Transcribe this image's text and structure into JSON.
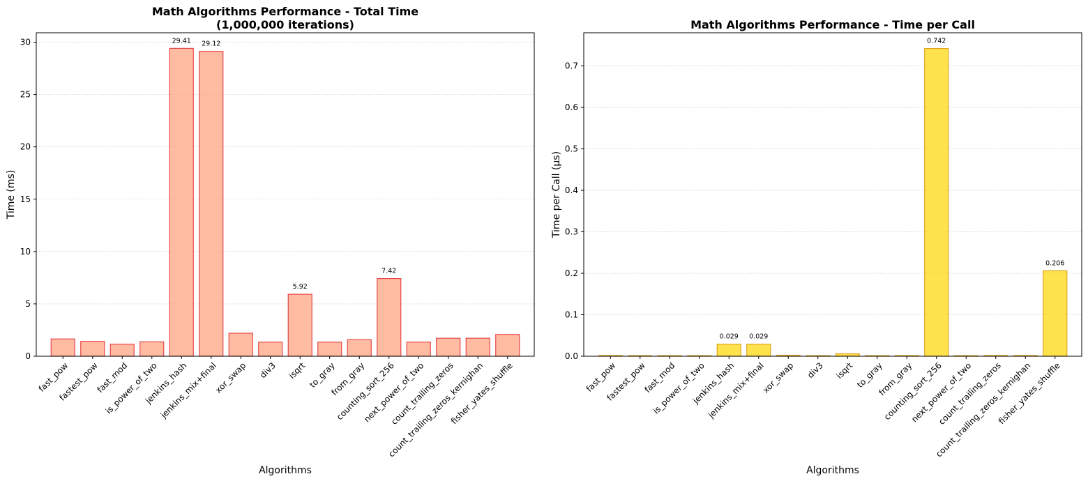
{
  "chart_data": [
    {
      "type": "bar",
      "title_lines": [
        "Math Algorithms Performance - Total Time",
        "(1,000,000 iterations)"
      ],
      "xlabel": "Algorithms",
      "ylabel": "Time (ms)",
      "ylim": [
        0,
        30.9
      ],
      "yticks": [
        0,
        5,
        10,
        15,
        20,
        25,
        30
      ],
      "ytick_labels": [
        "0",
        "5",
        "10",
        "15",
        "20",
        "25",
        "30"
      ],
      "bar_color": "#FFA07A",
      "edge_color": "#E8474A",
      "categories": [
        "fast_pow",
        "fastest_pow",
        "fast_mod",
        "is_power_of_two",
        "jenkins_hash",
        "jenkins_mix+final",
        "xor_swap",
        "div3",
        "isqrt",
        "to_gray",
        "from_gray",
        "counting_sort_256",
        "next_power_of_two",
        "count_trailing_zeros",
        "count_trailing_zeros_kernighan",
        "fisher_yates_shuffle"
      ],
      "values": [
        1.65,
        1.42,
        1.15,
        1.38,
        29.41,
        29.12,
        2.2,
        1.35,
        5.92,
        1.35,
        1.58,
        7.42,
        1.35,
        1.72,
        1.72,
        2.08
      ],
      "data_labels": [
        {
          "index": 4,
          "text": "29.41"
        },
        {
          "index": 5,
          "text": "29.12"
        },
        {
          "index": 8,
          "text": "5.92"
        },
        {
          "index": 11,
          "text": "7.42"
        }
      ]
    },
    {
      "type": "bar",
      "title_lines": [
        "Math Algorithms Performance - Time per Call"
      ],
      "xlabel": "Algorithms",
      "ylabel": "Time per Call (μs)",
      "ylim": [
        0,
        0.78
      ],
      "yticks": [
        0,
        0.1,
        0.2,
        0.3,
        0.4,
        0.5,
        0.6,
        0.7
      ],
      "ytick_labels": [
        "0.0",
        "0.1",
        "0.2",
        "0.3",
        "0.4",
        "0.5",
        "0.6",
        "0.7"
      ],
      "bar_color": "#FFD700",
      "edge_color": "#E0A21E",
      "categories": [
        "fast_pow",
        "fastest_pow",
        "fast_mod",
        "is_power_of_two",
        "jenkins_hash",
        "jenkins_mix+final",
        "xor_swap",
        "div3",
        "isqrt",
        "to_gray",
        "from_gray",
        "counting_sort_256",
        "next_power_of_two",
        "count_trailing_zeros",
        "count_trailing_zeros_kernighan",
        "fisher_yates_shuffle"
      ],
      "values": [
        0.0017,
        0.0014,
        0.0012,
        0.0014,
        0.029,
        0.029,
        0.0022,
        0.0013,
        0.0059,
        0.0013,
        0.0016,
        0.742,
        0.0013,
        0.0017,
        0.0017,
        0.206
      ],
      "data_labels": [
        {
          "index": 4,
          "text": "0.029"
        },
        {
          "index": 5,
          "text": "0.029"
        },
        {
          "index": 11,
          "text": "0.742"
        },
        {
          "index": 15,
          "text": "0.206"
        }
      ]
    }
  ]
}
